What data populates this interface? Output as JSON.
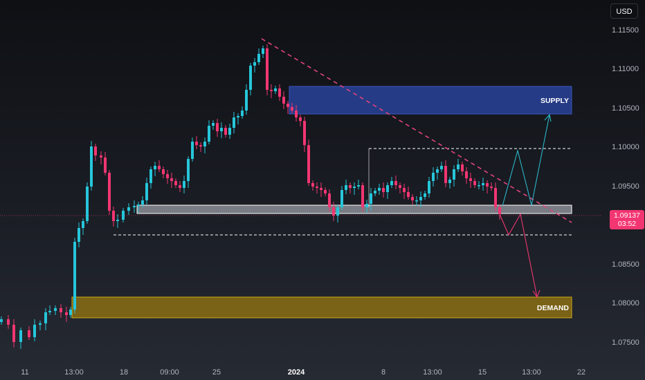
{
  "toolbar": {
    "currency": "USD"
  },
  "price_axis": {
    "labels": [
      "1.11500",
      "1.11000",
      "1.10500",
      "1.10000",
      "1.09500",
      "1.08500",
      "1.08000",
      "1.07500"
    ],
    "current_price": "1.09137",
    "countdown": "03:52"
  },
  "time_axis": {
    "labels": [
      "11",
      "13:00",
      "18",
      "09:00",
      "25",
      "2024",
      "8",
      "13:00",
      "15",
      "13:00",
      "22"
    ]
  },
  "zones": {
    "supply_label": "SUPPLY",
    "demand_label": "DEMAND"
  },
  "colors": {
    "up": "#26c6da",
    "down": "#f23672",
    "supply_zone": "#283f8f",
    "demand_zone": "#8a6d13",
    "trendline": "#e0457b",
    "arrow_up": "#2bb6c9",
    "arrow_down": "#f23672"
  },
  "chart_data": {
    "type": "candlestick",
    "symbol_quote": "USD",
    "ylim": [
      1.0725,
      1.1175
    ],
    "y_ticks": [
      1.075,
      1.08,
      1.085,
      1.095,
      1.1,
      1.105,
      1.11,
      1.115
    ],
    "current_price": 1.09137,
    "supply_zone": [
      1.1043,
      1.1078
    ],
    "demand_zone": [
      1.0782,
      1.0811
    ],
    "support_band": [
      1.0912,
      1.0923
    ],
    "range_top": 1.0998,
    "range_bottom": 1.0883
  }
}
